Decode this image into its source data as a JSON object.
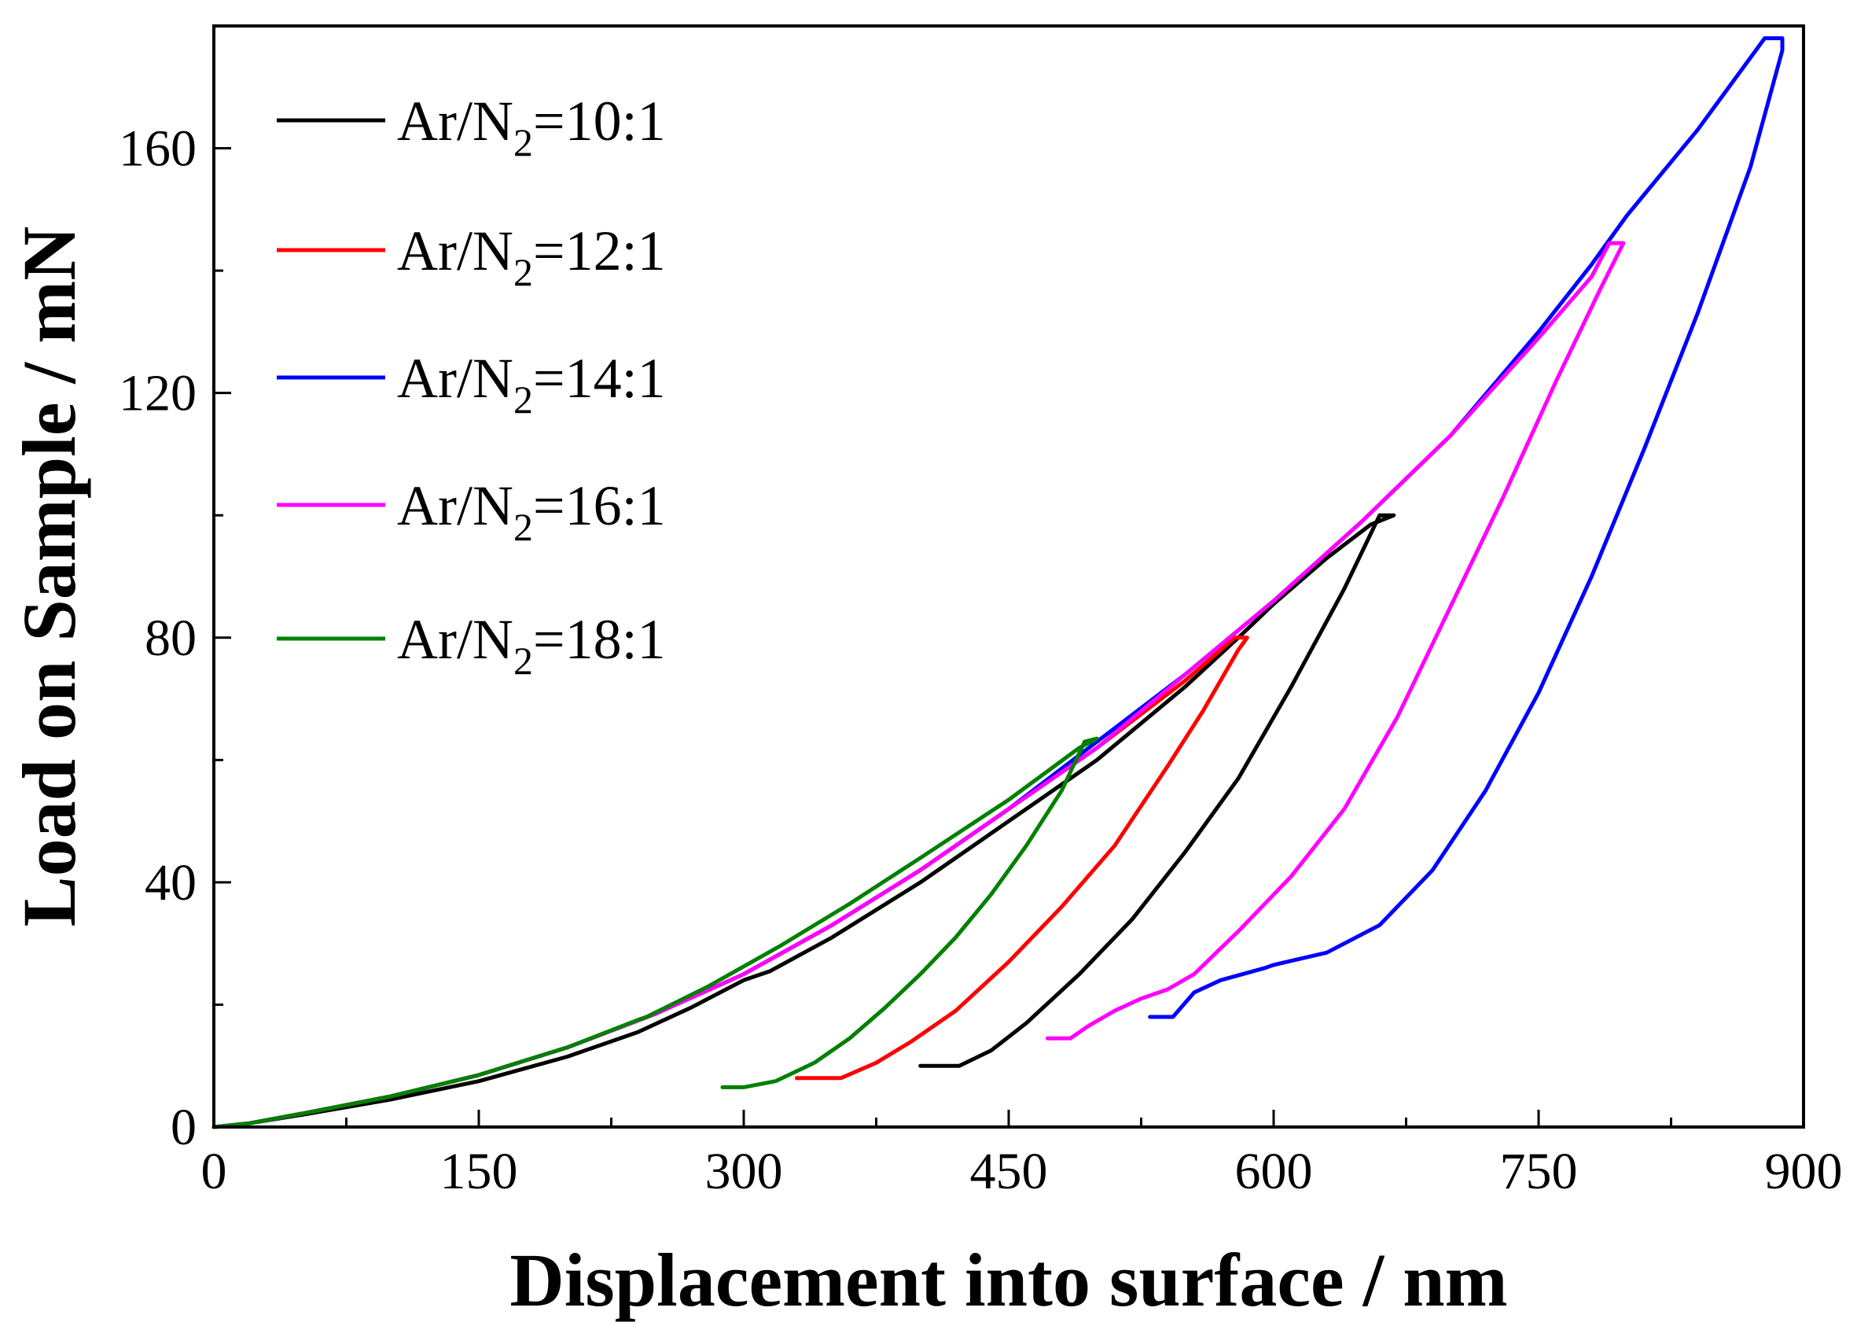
{
  "chart_data": {
    "type": "line",
    "title": "",
    "xlabel": "Displacement into surface / nm",
    "ylabel": "Load on Sample / mN",
    "xlim": [
      0,
      900
    ],
    "ylim": [
      0,
      180
    ],
    "xticks": [
      0,
      150,
      300,
      450,
      600,
      750,
      900
    ],
    "yticks": [
      0,
      40,
      80,
      120,
      160
    ],
    "xtick_labels": [
      "0",
      "150",
      "300",
      "450",
      "600",
      "750",
      "900"
    ],
    "ytick_labels": [
      "0",
      "40",
      "80",
      "120",
      "160"
    ],
    "grid": false,
    "legend_position": "top-left",
    "series": [
      {
        "name": "Ar/N2=10:1",
        "legend_main": "Ar/N",
        "legend_sub": "2",
        "legend_tail": "=10:1",
        "color": "#000000",
        "x": [
          0,
          20,
          50,
          100,
          150,
          200,
          240,
          270,
          300,
          315,
          350,
          400,
          450,
          500,
          550,
          580,
          600,
          630,
          655,
          668,
          660,
          640,
          610,
          580,
          550,
          520,
          490,
          460,
          440,
          422,
          400
        ],
        "y": [
          0,
          0.6,
          2,
          4.5,
          7.5,
          11.5,
          15.5,
          19.5,
          24,
          25.5,
          31,
          40,
          50,
          60,
          72,
          80,
          85.5,
          93,
          98.5,
          100,
          100,
          88,
          72,
          57,
          45,
          34,
          25,
          17,
          12.5,
          10,
          10
        ]
      },
      {
        "name": "Ar/N2=12:1",
        "legend_main": "Ar/N",
        "legend_sub": "2",
        "legend_tail": "=12:1",
        "color": "#ff0000",
        "x": [
          0,
          20,
          50,
          100,
          150,
          200,
          250,
          300,
          350,
          400,
          450,
          500,
          550,
          578,
          585,
          580,
          560,
          540,
          510,
          480,
          450,
          420,
          395,
          375,
          355,
          330
        ],
        "y": [
          0,
          0.6,
          2.2,
          5,
          8.5,
          13,
          18.5,
          25,
          33,
          42,
          52,
          62,
          73,
          80,
          80,
          78,
          68,
          59,
          46,
          36,
          27,
          19,
          14,
          10.5,
          8,
          8
        ]
      },
      {
        "name": "Ar/N2=14:1",
        "legend_main": "Ar/N",
        "legend_sub": "2",
        "legend_tail": "=14:1",
        "color": "#0000ff",
        "x": [
          0,
          20,
          50,
          100,
          150,
          200,
          250,
          300,
          350,
          400,
          450,
          500,
          550,
          600,
          650,
          700,
          750,
          780,
          800,
          840,
          878,
          888,
          888,
          870,
          840,
          810,
          780,
          750,
          720,
          690,
          660,
          630,
          600,
          595,
          570,
          555,
          543,
          530
        ],
        "y": [
          0,
          0.6,
          2.2,
          5,
          8.5,
          13,
          18.5,
          25,
          33,
          42,
          52,
          63,
          74,
          86,
          99,
          113,
          130,
          141,
          149,
          163,
          178,
          178,
          176,
          157,
          133,
          111,
          90,
          71,
          55,
          42,
          33,
          28.5,
          26.5,
          26,
          24,
          22,
          18,
          18
        ]
      },
      {
        "name": "Ar/N2=16:1",
        "legend_main": "Ar/N",
        "legend_sub": "2",
        "legend_tail": "=16:1",
        "color": "#ff00ff",
        "x": [
          0,
          20,
          50,
          100,
          150,
          200,
          250,
          300,
          350,
          400,
          450,
          500,
          550,
          600,
          650,
          700,
          750,
          780,
          790,
          798,
          785,
          760,
          730,
          700,
          670,
          640,
          610,
          580,
          555,
          540,
          525,
          510,
          495,
          485,
          472
        ],
        "y": [
          0,
          0.6,
          2.2,
          5,
          8.5,
          13,
          18.5,
          25,
          33,
          42,
          52,
          62,
          74,
          86,
          99,
          113,
          129,
          139,
          144.5,
          144.5,
          137,
          122,
          103,
          85,
          67,
          52,
          41,
          32,
          25,
          22.5,
          21,
          19,
          16.5,
          14.5,
          14.5
        ]
      },
      {
        "name": "Ar/N2=18:1",
        "legend_main": "Ar/N",
        "legend_sub": "2",
        "legend_tail": "=18:1",
        "color": "#008000",
        "x": [
          0,
          20,
          50,
          100,
          150,
          200,
          240,
          245,
          280,
          320,
          360,
          400,
          450,
          490,
          500,
          493,
          480,
          460,
          440,
          420,
          400,
          380,
          360,
          340,
          318,
          300,
          288
        ],
        "y": [
          0,
          0.6,
          2.2,
          5,
          8.5,
          13,
          17.5,
          18,
          23,
          29.5,
          36.5,
          44,
          53.5,
          62,
          63.5,
          63,
          55,
          46,
          38,
          31,
          25,
          19.5,
          14.5,
          10.5,
          7.5,
          6.5,
          6.5
        ]
      }
    ]
  }
}
